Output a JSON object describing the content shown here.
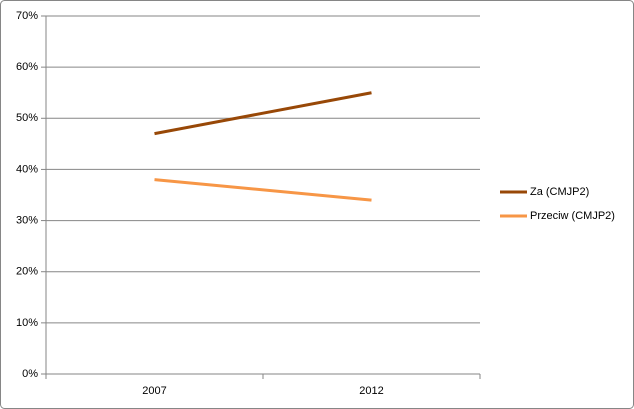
{
  "chart_data": {
    "type": "line",
    "categories": [
      "2007",
      "2012"
    ],
    "series": [
      {
        "name": "Za (CMJP2)",
        "color": "#984807",
        "values": [
          47,
          55
        ]
      },
      {
        "name": "Przeciw (CMJP2)",
        "color": "#f79646",
        "values": [
          38,
          34
        ]
      }
    ],
    "ylim": [
      0,
      70
    ],
    "yticks": [
      {
        "value": 0,
        "label": "0%"
      },
      {
        "value": 10,
        "label": "10%"
      },
      {
        "value": 20,
        "label": "20%"
      },
      {
        "value": 30,
        "label": "30%"
      },
      {
        "value": 40,
        "label": "40%"
      },
      {
        "value": 50,
        "label": "50%"
      },
      {
        "value": 60,
        "label": "60%"
      },
      {
        "value": 70,
        "label": "70%"
      }
    ],
    "grid": true,
    "legend": "right"
  }
}
